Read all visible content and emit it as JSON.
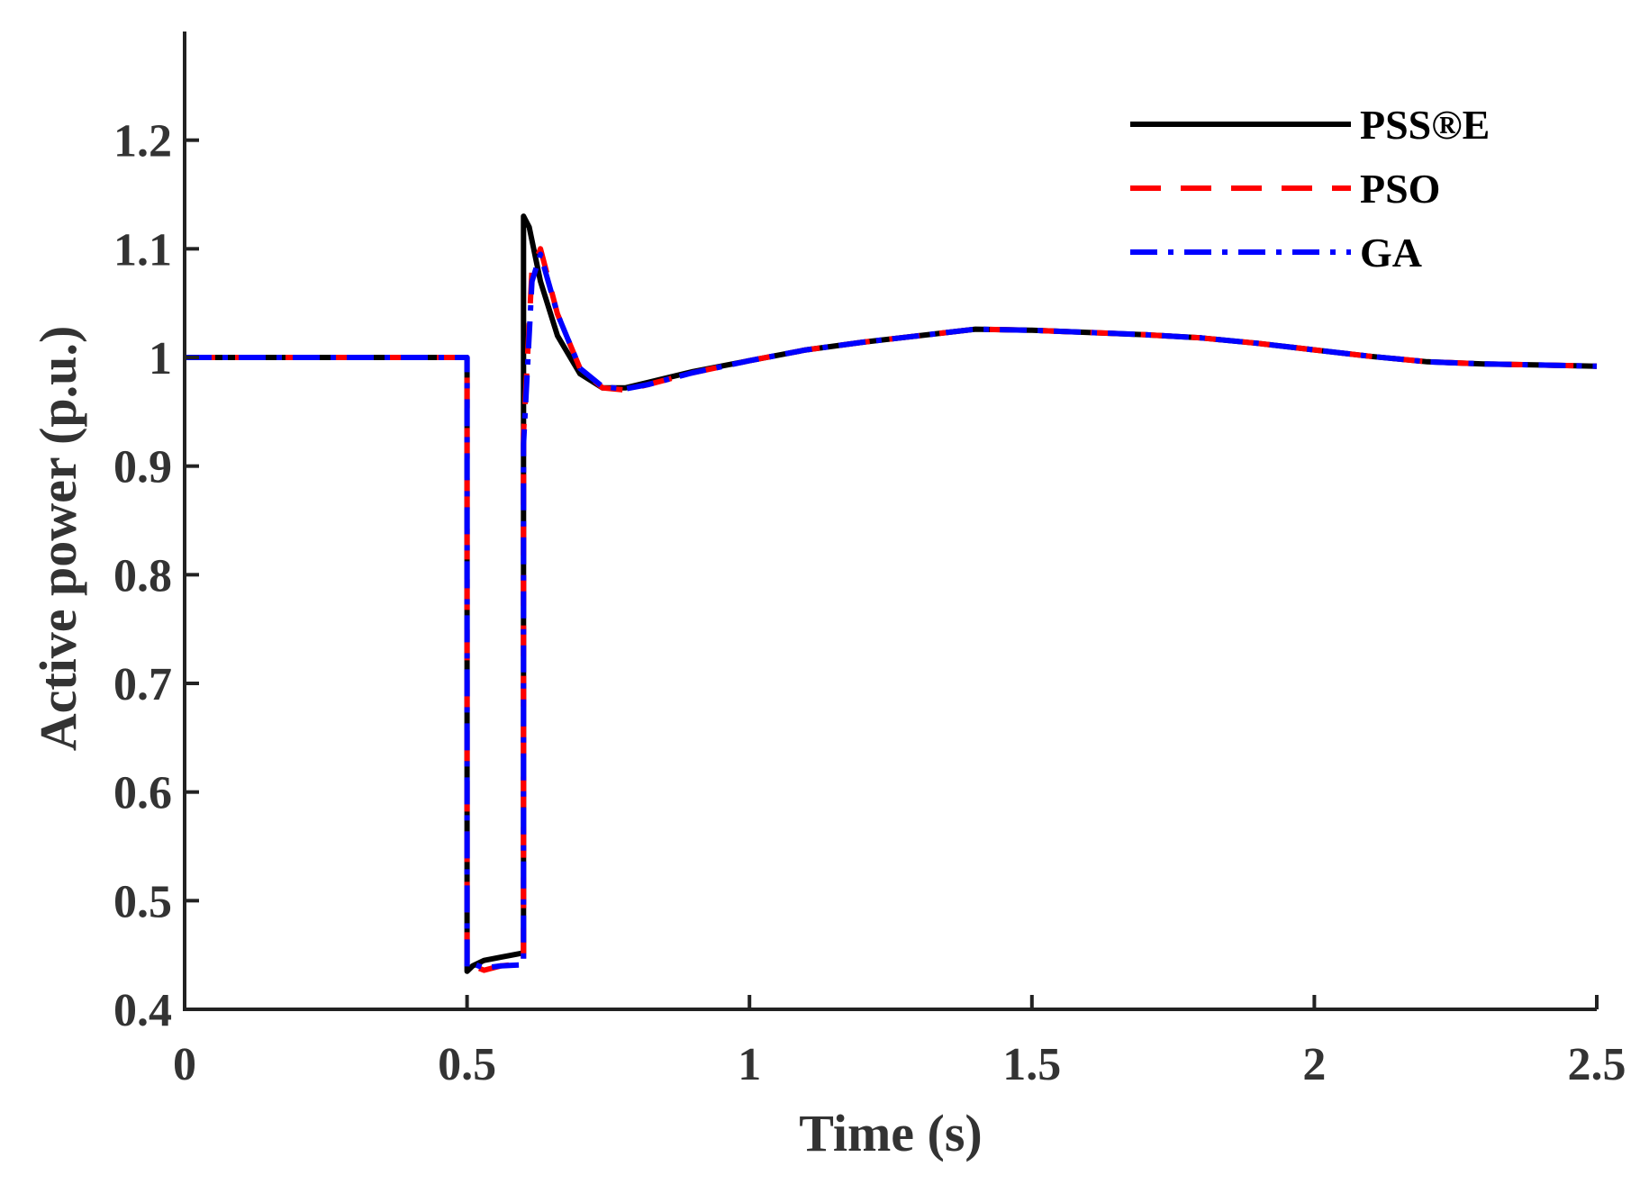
{
  "chart_data": {
    "type": "line",
    "title": "",
    "xlabel": "Time (s)",
    "ylabel": "Active power (p.u.)",
    "xlim": [
      0,
      2.5
    ],
    "ylim": [
      0.4,
      1.3
    ],
    "xticks": [
      0,
      0.5,
      1,
      1.5,
      2,
      2.5
    ],
    "xtick_labels": [
      "0",
      "0.5",
      "1",
      "1.5",
      "2",
      "2.5"
    ],
    "yticks": [
      0.4,
      0.5,
      0.6,
      0.7,
      0.8,
      0.9,
      1.0,
      1.1,
      1.2
    ],
    "ytick_labels": [
      "0.4",
      "0.5",
      "0.6",
      "0.7",
      "0.8",
      "0.9",
      "1",
      "1.1",
      "1.2"
    ],
    "grid": false,
    "legend_position": "top-right",
    "series": [
      {
        "name": "PSS®E",
        "color": "#000000",
        "style": "solid",
        "x": [
          0,
          0.5,
          0.5,
          0.51,
          0.53,
          0.56,
          0.6,
          0.6,
          0.61,
          0.63,
          0.66,
          0.7,
          0.74,
          0.78,
          0.82,
          0.9,
          1.0,
          1.1,
          1.2,
          1.3,
          1.4,
          1.5,
          1.6,
          1.7,
          1.8,
          1.9,
          2.0,
          2.1,
          2.2,
          2.3,
          2.4,
          2.5
        ],
        "y": [
          1.0,
          1.0,
          0.435,
          0.44,
          0.445,
          0.448,
          0.452,
          1.13,
          1.12,
          1.07,
          1.02,
          0.985,
          0.972,
          0.972,
          0.977,
          0.987,
          0.997,
          1.007,
          1.014,
          1.02,
          1.026,
          1.025,
          1.023,
          1.021,
          1.018,
          1.013,
          1.007,
          1.001,
          0.996,
          0.994,
          0.993,
          0.992
        ]
      },
      {
        "name": "PSO",
        "color": "#ff0000",
        "style": "dashed",
        "x": [
          0,
          0.5,
          0.5,
          0.51,
          0.53,
          0.56,
          0.6,
          0.6,
          0.615,
          0.63,
          0.66,
          0.7,
          0.74,
          0.78,
          0.82,
          0.9,
          1.0,
          1.1,
          1.2,
          1.3,
          1.4,
          1.5,
          1.6,
          1.7,
          1.8,
          1.9,
          2.0,
          2.1,
          2.2,
          2.3,
          2.4,
          2.5
        ],
        "y": [
          1.0,
          1.0,
          0.437,
          0.44,
          0.436,
          0.44,
          0.442,
          0.93,
          1.08,
          1.1,
          1.04,
          0.99,
          0.972,
          0.97,
          0.975,
          0.986,
          0.997,
          1.007,
          1.014,
          1.02,
          1.026,
          1.025,
          1.023,
          1.021,
          1.018,
          1.013,
          1.007,
          1.001,
          0.996,
          0.994,
          0.993,
          0.992
        ]
      },
      {
        "name": "GA",
        "color": "#0000ff",
        "style": "dashdot",
        "x": [
          0,
          0.5,
          0.5,
          0.51,
          0.53,
          0.56,
          0.6,
          0.6,
          0.615,
          0.63,
          0.66,
          0.7,
          0.74,
          0.78,
          0.82,
          0.9,
          1.0,
          1.1,
          1.2,
          1.3,
          1.4,
          1.5,
          1.6,
          1.7,
          1.8,
          1.9,
          2.0,
          2.1,
          2.2,
          2.3,
          2.4,
          2.5
        ],
        "y": [
          1.0,
          1.0,
          0.439,
          0.442,
          0.438,
          0.44,
          0.441,
          0.92,
          1.07,
          1.095,
          1.04,
          0.99,
          0.973,
          0.971,
          0.975,
          0.986,
          0.997,
          1.007,
          1.014,
          1.02,
          1.026,
          1.025,
          1.023,
          1.021,
          1.018,
          1.013,
          1.007,
          1.001,
          0.996,
          0.994,
          0.993,
          0.992
        ]
      }
    ]
  }
}
